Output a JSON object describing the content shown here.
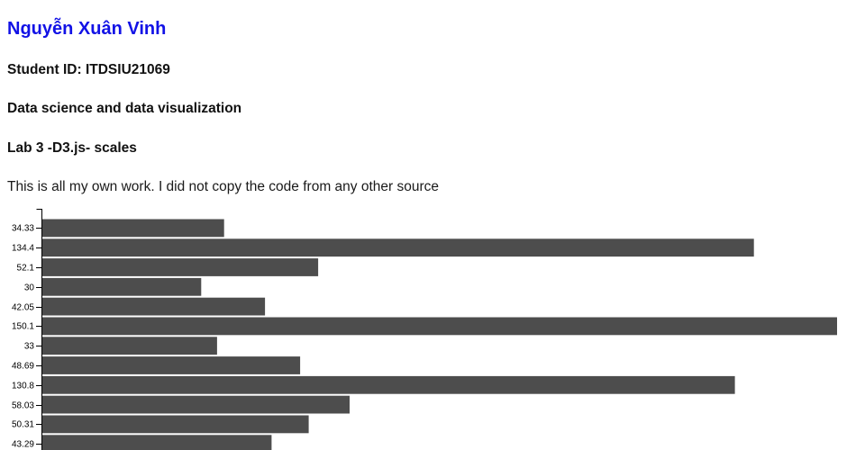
{
  "header": {
    "author": "Nguyễn Xuân Vinh",
    "student_id_line": "Student ID: ITDSIU21069",
    "course_line": "Data science and data visualization",
    "lab_line": "Lab 3 -D3.js- scales",
    "honor_line": "This is all my own work. I did not copy the code from any other source"
  },
  "colors": {
    "link_blue": "#1212e6",
    "bar_fill": "#4d4d4d",
    "axis_color": "#000000",
    "text_color": "#111111",
    "background": "#ffffff"
  },
  "chart_data": {
    "type": "bar",
    "orientation": "horizontal",
    "title": "",
    "xlabel": "",
    "ylabel": "",
    "legend": null,
    "grid": false,
    "axis_side": "left",
    "categories": [
      "34.33",
      "134.4",
      "52.1",
      "30",
      "42.05",
      "150.1",
      "33",
      "48.69",
      "130.8",
      "58.03",
      "50.31",
      "43.29"
    ],
    "values": [
      34.33,
      134.4,
      52.1,
      30,
      42.05,
      150.1,
      33,
      48.69,
      130.8,
      58.03,
      50.31,
      43.29
    ],
    "xlim": [
      0,
      150.1
    ],
    "bar_color": "#4d4d4d",
    "tick_label_font_px": 10
  }
}
